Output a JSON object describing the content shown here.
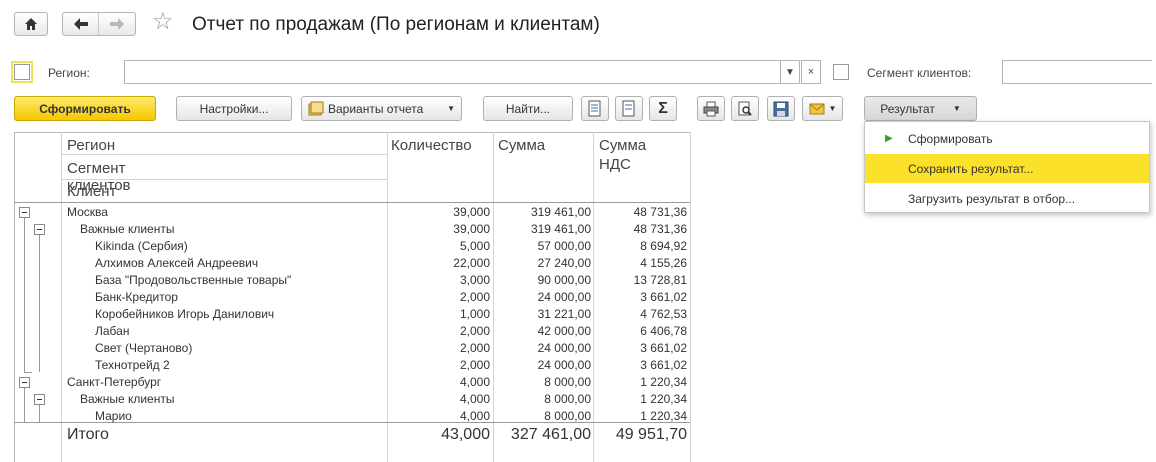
{
  "window": {
    "title": "Отчет по продажам (По регионам и клиентам)"
  },
  "filters": {
    "region_label": "Регион:",
    "region_value": "",
    "segment_label": "Сегмент клиентов:",
    "segment_value": ""
  },
  "toolbar": {
    "generate_label": "Сформировать",
    "settings_label": "Настройки...",
    "variants_label": "Варианты отчета",
    "find_label": "Найти...",
    "result_label": "Результат"
  },
  "result_menu": {
    "items": [
      {
        "label": "Сформировать"
      },
      {
        "label": "Сохранить результат..."
      },
      {
        "label": "Загрузить результат в отбор..."
      }
    ]
  },
  "report": {
    "headers": {
      "region": "Регион",
      "segment": "Сегмент клиентов",
      "client": "Клиент",
      "qty": "Количество",
      "sum": "Сумма",
      "vat_line1": "Сумма",
      "vat_line2": "НДС"
    },
    "rows": [
      {
        "level": 0,
        "name": "Москва",
        "qty": "39,000",
        "sum": "319 461,00",
        "vat": "48 731,36"
      },
      {
        "level": 1,
        "name": "Важные клиенты",
        "qty": "39,000",
        "sum": "319 461,00",
        "vat": "48 731,36"
      },
      {
        "level": 2,
        "name": "Kikinda (Сербия)",
        "qty": "5,000",
        "sum": "57 000,00",
        "vat": "8 694,92"
      },
      {
        "level": 2,
        "name": "Алхимов Алексей Андреевич",
        "qty": "22,000",
        "sum": "27 240,00",
        "vat": "4 155,26"
      },
      {
        "level": 2,
        "name": "База \"Продовольственные товары\"",
        "qty": "3,000",
        "sum": "90 000,00",
        "vat": "13 728,81"
      },
      {
        "level": 2,
        "name": "Банк-Кредитор",
        "qty": "2,000",
        "sum": "24 000,00",
        "vat": "3 661,02"
      },
      {
        "level": 2,
        "name": "Коробейников Игорь Данилович",
        "qty": "1,000",
        "sum": "31 221,00",
        "vat": "4 762,53"
      },
      {
        "level": 2,
        "name": "Лабан",
        "qty": "2,000",
        "sum": "42 000,00",
        "vat": "6 406,78"
      },
      {
        "level": 2,
        "name": "Свет (Чертаново)",
        "qty": "2,000",
        "sum": "24 000,00",
        "vat": "3 661,02"
      },
      {
        "level": 2,
        "name": "Технотрейд 2",
        "qty": "2,000",
        "sum": "24 000,00",
        "vat": "3 661,02"
      },
      {
        "level": 0,
        "name": "Санкт-Петербург",
        "qty": "4,000",
        "sum": "8 000,00",
        "vat": "1 220,34"
      },
      {
        "level": 1,
        "name": "Важные клиенты",
        "qty": "4,000",
        "sum": "8 000,00",
        "vat": "1 220,34"
      },
      {
        "level": 2,
        "name": "Марио",
        "qty": "4,000",
        "sum": "8 000,00",
        "vat": "1 220,34"
      }
    ],
    "total": {
      "label": "Итого",
      "qty": "43,000",
      "sum": "327 461,00",
      "vat": "49 951,70"
    }
  },
  "colors": {
    "primary_button": "#f4c800",
    "menu_highlight": "#fbe12a",
    "run_arrow": "#3aa02a"
  }
}
